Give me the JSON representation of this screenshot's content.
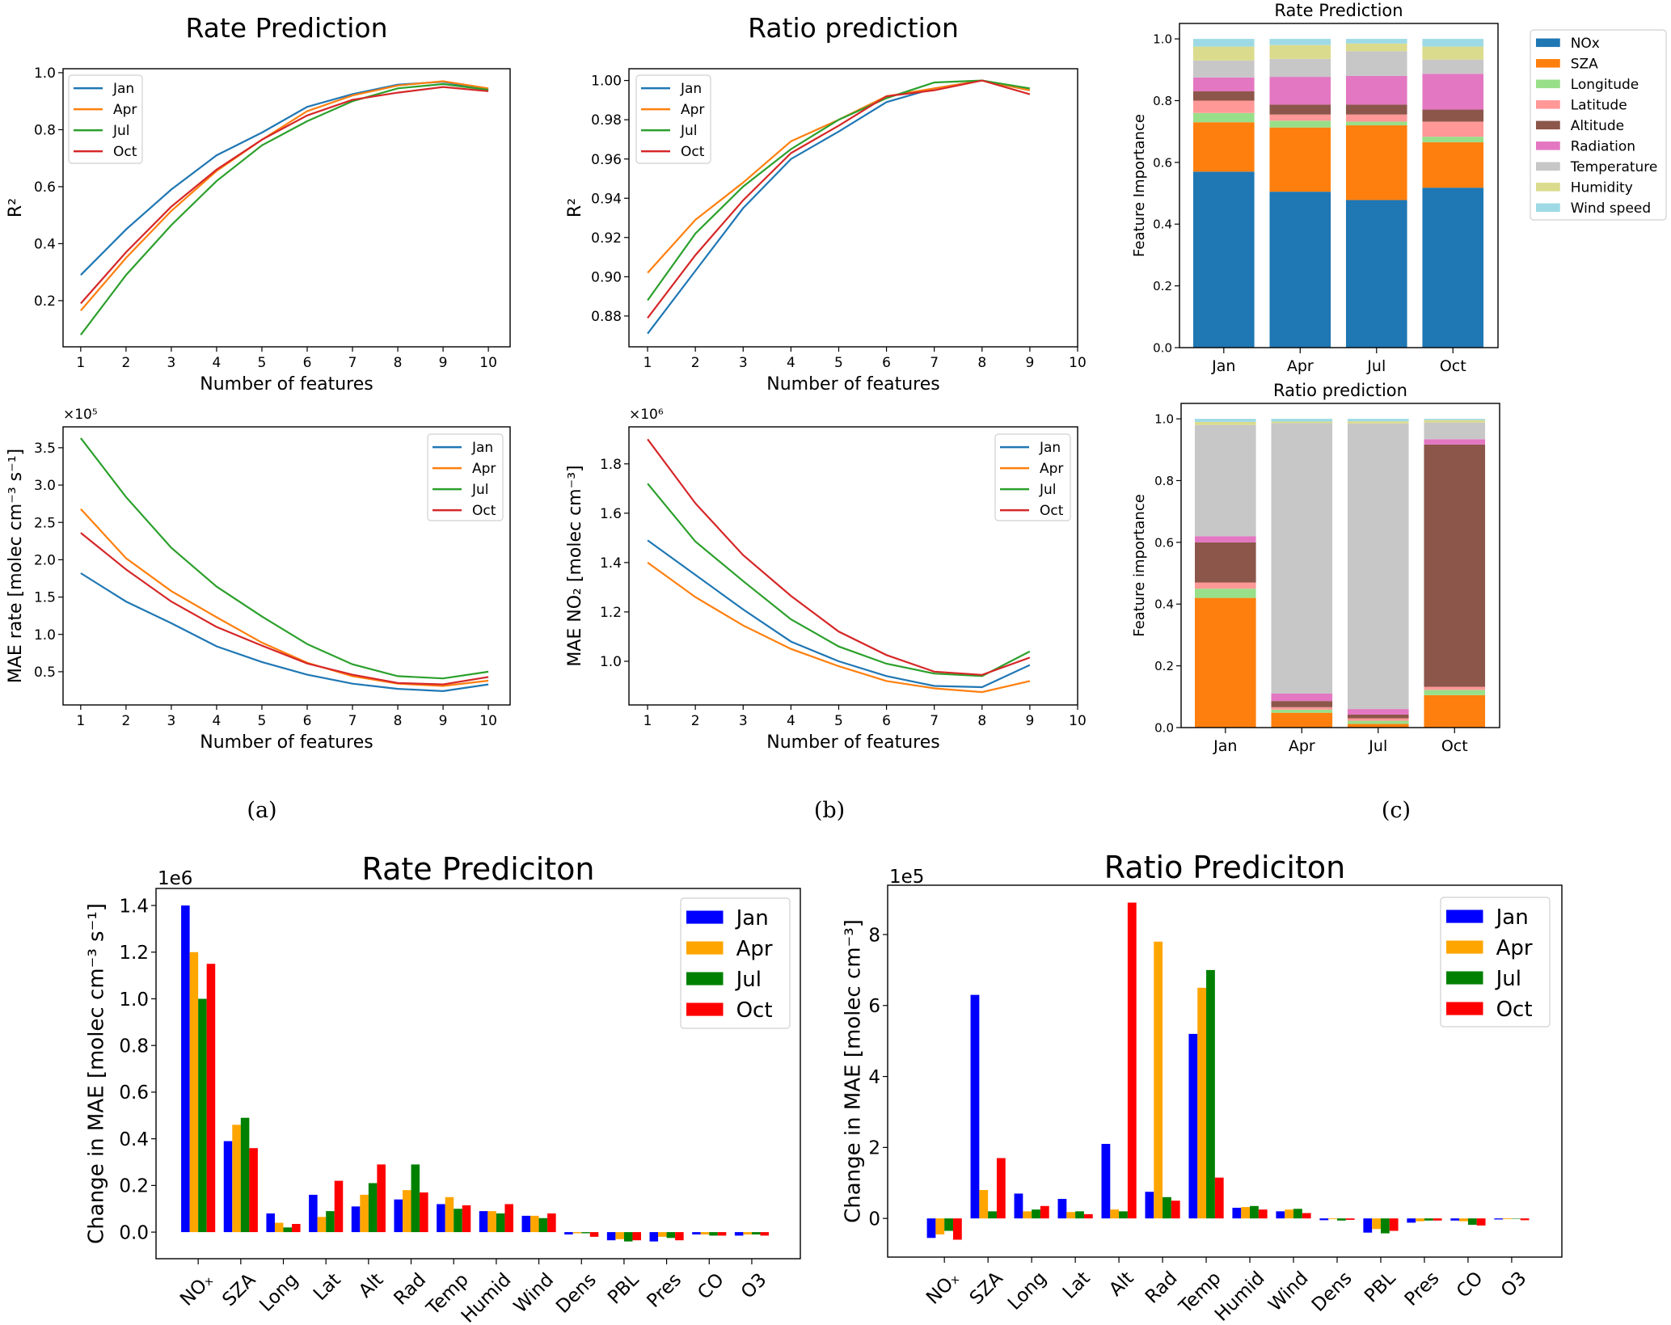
{
  "panel_labels": [
    "(a)",
    "(b)",
    "(c)"
  ],
  "chart_data": [
    {
      "id": "a1",
      "type": "line",
      "title": "Rate Prediction",
      "xlabel": "Number of features",
      "ylabel": "R²",
      "x": [
        1,
        2,
        3,
        4,
        5,
        6,
        7,
        8,
        9,
        10
      ],
      "xticks": [
        1,
        2,
        3,
        4,
        5,
        6,
        7,
        8,
        9,
        10
      ],
      "xlim": [
        0.61,
        10.48
      ],
      "yticks": [
        0.2,
        0.4,
        0.6,
        0.8,
        1.0
      ],
      "ytick_labels": [
        "0.2",
        "0.4",
        "0.6",
        "0.8",
        "1.0"
      ],
      "ylim": [
        0.038,
        1.014
      ],
      "legend": "upper left",
      "series": [
        {
          "name": "Jan",
          "color": "#1f77b4",
          "values": [
            0.29,
            0.45,
            0.59,
            0.71,
            0.79,
            0.88,
            0.925,
            0.958,
            0.968,
            0.94
          ]
        },
        {
          "name": "Apr",
          "color": "#ff7f0e",
          "values": [
            0.165,
            0.35,
            0.515,
            0.655,
            0.765,
            0.865,
            0.92,
            0.955,
            0.97,
            0.945
          ]
        },
        {
          "name": "Jul",
          "color": "#2ca02c",
          "values": [
            0.08,
            0.29,
            0.465,
            0.62,
            0.745,
            0.83,
            0.9,
            0.945,
            0.96,
            0.94
          ]
        },
        {
          "name": "Oct",
          "color": "#d62728",
          "values": [
            0.19,
            0.37,
            0.53,
            0.66,
            0.765,
            0.85,
            0.905,
            0.93,
            0.95,
            0.935
          ]
        }
      ]
    },
    {
      "id": "b1",
      "type": "line",
      "title": "Ratio prediction",
      "xlabel": "Number of features",
      "ylabel": "R²",
      "x": [
        1,
        2,
        3,
        4,
        5,
        6,
        7,
        8,
        9
      ],
      "xticks": [
        1,
        2,
        3,
        4,
        5,
        6,
        7,
        8,
        9,
        10
      ],
      "xlim": [
        0.61,
        10
      ],
      "yticks": [
        0.88,
        0.9,
        0.92,
        0.94,
        0.96,
        0.98,
        1.0
      ],
      "ytick_labels": [
        "0.88",
        "0.90",
        "0.92",
        "0.94",
        "0.96",
        "0.98",
        "1.00"
      ],
      "ylim": [
        0.8643,
        1.006
      ],
      "legend": "upper left",
      "series": [
        {
          "name": "Jan",
          "color": "#1f77b4",
          "values": [
            0.871,
            0.903,
            0.935,
            0.96,
            0.974,
            0.989,
            0.996,
            1.0,
            0.995
          ]
        },
        {
          "name": "Apr",
          "color": "#ff7f0e",
          "values": [
            0.902,
            0.929,
            0.948,
            0.969,
            0.98,
            0.992,
            0.996,
            1.0,
            0.995
          ]
        },
        {
          "name": "Jul",
          "color": "#2ca02c",
          "values": [
            0.888,
            0.922,
            0.946,
            0.965,
            0.98,
            0.991,
            0.999,
            1.0,
            0.996
          ]
        },
        {
          "name": "Oct",
          "color": "#d62728",
          "values": [
            0.879,
            0.911,
            0.939,
            0.963,
            0.977,
            0.992,
            0.995,
            1.0,
            0.993
          ]
        }
      ]
    },
    {
      "id": "a2",
      "type": "line",
      "title": "",
      "xlabel": "Number of features",
      "ylabel": "MAE rate [molec cm⁻³ s⁻¹]",
      "offset_text": "×10⁵",
      "x": [
        1,
        2,
        3,
        4,
        5,
        6,
        7,
        8,
        9,
        10
      ],
      "xticks": [
        1,
        2,
        3,
        4,
        5,
        6,
        7,
        8,
        9,
        10
      ],
      "xlim": [
        0.61,
        10.48
      ],
      "yticks": [
        0.5,
        1.0,
        1.5,
        2.0,
        2.5,
        3.0,
        3.5
      ],
      "ytick_labels": [
        "0.5",
        "1.0",
        "1.5",
        "2.0",
        "2.5",
        "3.0",
        "3.5"
      ],
      "ylim": [
        0.055,
        3.78
      ],
      "legend": "upper right",
      "series": [
        {
          "name": "Jan",
          "color": "#1f77b4",
          "values": [
            1.82,
            1.44,
            1.15,
            0.84,
            0.63,
            0.46,
            0.34,
            0.27,
            0.24,
            0.33
          ]
        },
        {
          "name": "Apr",
          "color": "#ff7f0e",
          "values": [
            2.68,
            2.02,
            1.58,
            1.23,
            0.89,
            0.62,
            0.44,
            0.34,
            0.31,
            0.38
          ]
        },
        {
          "name": "Jul",
          "color": "#2ca02c",
          "values": [
            3.63,
            2.84,
            2.16,
            1.64,
            1.24,
            0.87,
            0.6,
            0.44,
            0.41,
            0.5
          ]
        },
        {
          "name": "Oct",
          "color": "#d62728",
          "values": [
            2.36,
            1.87,
            1.44,
            1.1,
            0.85,
            0.61,
            0.46,
            0.35,
            0.33,
            0.43
          ]
        }
      ]
    },
    {
      "id": "b2",
      "type": "line",
      "title": "",
      "xlabel": "Number of features",
      "ylabel": "MAE NO₂ [molec cm⁻³]",
      "offset_text": "×10⁶",
      "x": [
        1,
        2,
        3,
        4,
        5,
        6,
        7,
        8,
        9
      ],
      "xticks": [
        1,
        2,
        3,
        4,
        5,
        6,
        7,
        8,
        9,
        10
      ],
      "xlim": [
        0.61,
        10
      ],
      "yticks": [
        1.0,
        1.2,
        1.4,
        1.6,
        1.8
      ],
      "ytick_labels": [
        "1.0",
        "1.2",
        "1.4",
        "1.6",
        "1.8"
      ],
      "ylim": [
        0.823,
        1.95
      ],
      "legend": "upper right",
      "series": [
        {
          "name": "Jan",
          "color": "#1f77b4",
          "values": [
            1.49,
            1.35,
            1.21,
            1.08,
            1.0,
            0.94,
            0.9,
            0.895,
            0.985
          ]
        },
        {
          "name": "Apr",
          "color": "#ff7f0e",
          "values": [
            1.4,
            1.26,
            1.145,
            1.05,
            0.98,
            0.92,
            0.89,
            0.875,
            0.92
          ]
        },
        {
          "name": "Jul",
          "color": "#2ca02c",
          "values": [
            1.72,
            1.485,
            1.325,
            1.17,
            1.06,
            0.99,
            0.95,
            0.94,
            1.04
          ]
        },
        {
          "name": "Oct",
          "color": "#d62728",
          "values": [
            1.9,
            1.64,
            1.43,
            1.265,
            1.12,
            1.025,
            0.958,
            0.945,
            1.015
          ]
        }
      ]
    },
    {
      "id": "c1",
      "type": "bar",
      "stacked": true,
      "title": "Rate Prediction",
      "ylabel": "Feature Importance",
      "categories": [
        "Jan",
        "Apr",
        "Jul",
        "Oct"
      ],
      "yticks": [
        0,
        0.2,
        0.4,
        0.6,
        0.8,
        1.0
      ],
      "ytick_labels": [
        "0.0",
        "0.2",
        "0.4",
        "0.6",
        "0.8",
        "1.0"
      ],
      "ylim": [
        0,
        1.05
      ],
      "legend": "outside right",
      "series": [
        {
          "name": "NOx",
          "color": "#1f77b4",
          "values": [
            0.57,
            0.505,
            0.478,
            0.518
          ]
        },
        {
          "name": "SZA",
          "color": "#ff7f0e",
          "values": [
            0.16,
            0.208,
            0.242,
            0.147
          ]
        },
        {
          "name": "Longitude",
          "color": "#98df8a",
          "values": [
            0.03,
            0.022,
            0.012,
            0.018
          ]
        },
        {
          "name": "Latitude",
          "color": "#ff9896",
          "values": [
            0.04,
            0.02,
            0.023,
            0.049
          ]
        },
        {
          "name": "Altitude",
          "color": "#8c564b",
          "values": [
            0.03,
            0.032,
            0.032,
            0.039
          ]
        },
        {
          "name": "Radiation",
          "color": "#e377c2",
          "values": [
            0.045,
            0.09,
            0.093,
            0.116
          ]
        },
        {
          "name": "Temperature",
          "color": "#c7c7c7",
          "values": [
            0.055,
            0.058,
            0.08,
            0.046
          ]
        },
        {
          "name": "Humidity",
          "color": "#dbdb8d",
          "values": [
            0.045,
            0.045,
            0.025,
            0.042
          ]
        },
        {
          "name": "Wind speed",
          "color": "#9edae5",
          "values": [
            0.025,
            0.02,
            0.015,
            0.025
          ]
        }
      ]
    },
    {
      "id": "c2",
      "type": "bar",
      "stacked": true,
      "title": "Ratio prediction",
      "ylabel": "Feature importance",
      "categories": [
        "Jan",
        "Apr",
        "Jul",
        "Oct"
      ],
      "yticks": [
        0,
        0.2,
        0.4,
        0.6,
        0.8,
        1.0
      ],
      "ytick_labels": [
        "0.0",
        "0.2",
        "0.4",
        "0.6",
        "0.8",
        "1.0"
      ],
      "ylim": [
        0,
        1.05
      ],
      "series": [
        {
          "name": "NOx",
          "color": "#1f77b4",
          "values": [
            0,
            0,
            0,
            0
          ]
        },
        {
          "name": "SZA",
          "color": "#ff7f0e",
          "values": [
            0.42,
            0.048,
            0.012,
            0.105
          ]
        },
        {
          "name": "Longitude",
          "color": "#98df8a",
          "values": [
            0.03,
            0.01,
            0.01,
            0.017
          ]
        },
        {
          "name": "Latitude",
          "color": "#ff9896",
          "values": [
            0.02,
            0.008,
            0.008,
            0.01
          ]
        },
        {
          "name": "Altitude",
          "color": "#8c564b",
          "values": [
            0.13,
            0.02,
            0.012,
            0.785
          ]
        },
        {
          "name": "Radiation",
          "color": "#e377c2",
          "values": [
            0.02,
            0.024,
            0.018,
            0.017
          ]
        },
        {
          "name": "Temperature",
          "color": "#c7c7c7",
          "values": [
            0.36,
            0.876,
            0.925,
            0.054
          ]
        },
        {
          "name": "Humidity",
          "color": "#dbdb8d",
          "values": [
            0.01,
            0.005,
            0.007,
            0.008
          ]
        },
        {
          "name": "Wind speed",
          "color": "#9edae5",
          "values": [
            0.01,
            0.009,
            0.008,
            0.004
          ]
        }
      ]
    },
    {
      "id": "d",
      "type": "bar",
      "stacked": false,
      "title": "Rate Prediciton",
      "ylabel": "Change in MAE [molec cm⁻³ s⁻¹]",
      "offset_text": "1e6",
      "categories": [
        "NOₓ",
        "SZA",
        "Long",
        "Lat",
        "Alt",
        "Rad",
        "Temp",
        "Humid",
        "Wind",
        "Dens",
        "PBL",
        "Pres",
        "CO",
        "O3"
      ],
      "yticks": [
        0,
        0.2,
        0.4,
        0.6,
        0.8,
        1.0,
        1.2,
        1.4
      ],
      "ytick_labels": [
        "0.0",
        "0.2",
        "0.4",
        "0.6",
        "0.8",
        "1.0",
        "1.2",
        "1.4"
      ],
      "ylim": [
        -0.114,
        1.473
      ],
      "legend": "upper right",
      "series": [
        {
          "name": "Jan",
          "color": "#0000ff",
          "values": [
            1.4,
            0.39,
            0.08,
            0.16,
            0.11,
            0.14,
            0.12,
            0.09,
            0.07,
            -0.01,
            -0.035,
            -0.04,
            -0.01,
            -0.015
          ]
        },
        {
          "name": "Apr",
          "color": "#ffa500",
          "values": [
            1.2,
            0.46,
            0.04,
            0.065,
            0.16,
            0.18,
            0.15,
            0.09,
            0.07,
            -0.005,
            -0.03,
            -0.02,
            -0.01,
            -0.01
          ]
        },
        {
          "name": "Jul",
          "color": "#008000",
          "values": [
            1.0,
            0.49,
            0.02,
            0.09,
            0.21,
            0.29,
            0.1,
            0.08,
            0.06,
            -0.005,
            -0.04,
            -0.025,
            -0.015,
            -0.01
          ]
        },
        {
          "name": "Oct",
          "color": "#ff0000",
          "values": [
            1.15,
            0.36,
            0.035,
            0.22,
            0.29,
            0.17,
            0.115,
            0.12,
            0.08,
            -0.02,
            -0.035,
            -0.035,
            -0.015,
            -0.015
          ]
        }
      ]
    },
    {
      "id": "e",
      "type": "bar",
      "stacked": false,
      "title": "Ratio Prediciton",
      "ylabel": "Change in MAE [molec cm⁻³]",
      "offset_text": "1e5",
      "categories": [
        "NOₓ",
        "SZA",
        "Long",
        "Lat",
        "Alt",
        "Rad",
        "Temp",
        "Humid",
        "Wind",
        "Dens",
        "PBL",
        "Pres",
        "CO",
        "O3"
      ],
      "yticks": [
        0,
        2,
        4,
        6,
        8
      ],
      "ytick_labels": [
        "0",
        "2",
        "4",
        "6",
        "8"
      ],
      "ylim": [
        -1.09,
        9.39
      ],
      "legend": "upper right",
      "series": [
        {
          "name": "Jan",
          "color": "#0000ff",
          "values": [
            -0.55,
            6.3,
            0.7,
            0.55,
            2.1,
            0.75,
            5.2,
            0.3,
            0.2,
            -0.05,
            -0.4,
            -0.12,
            -0.06,
            -0.03
          ]
        },
        {
          "name": "Apr",
          "color": "#ffa500",
          "values": [
            -0.45,
            0.8,
            0.2,
            0.18,
            0.25,
            7.8,
            6.5,
            0.32,
            0.25,
            -0.02,
            -0.3,
            -0.08,
            -0.08,
            -0.02
          ]
        },
        {
          "name": "Jul",
          "color": "#008000",
          "values": [
            -0.35,
            0.2,
            0.25,
            0.2,
            0.2,
            0.6,
            7.0,
            0.35,
            0.27,
            -0.06,
            -0.42,
            -0.06,
            -0.18,
            0
          ]
        },
        {
          "name": "Oct",
          "color": "#ff0000",
          "values": [
            -0.6,
            1.7,
            0.35,
            0.12,
            8.9,
            0.5,
            1.15,
            0.25,
            0.15,
            -0.04,
            -0.35,
            -0.06,
            -0.2,
            -0.05
          ]
        }
      ]
    }
  ]
}
